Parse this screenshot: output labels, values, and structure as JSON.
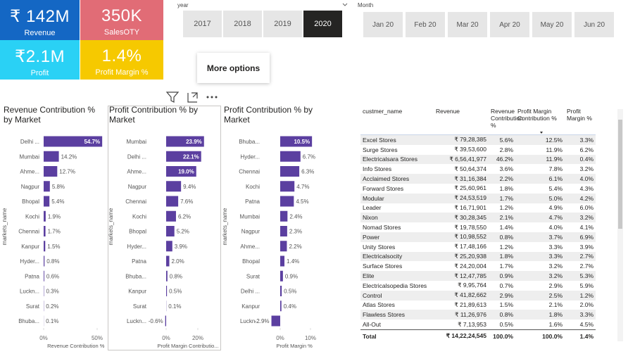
{
  "cards": [
    {
      "value": "₹ 142M",
      "label": "Revenue",
      "color": "#1467c4"
    },
    {
      "value": "350K",
      "label": "SalesOTY",
      "color": "#e16c76"
    },
    {
      "value": "₹2.1M",
      "label": "Profit",
      "color": "#2ad1f5"
    },
    {
      "value": "1.4%",
      "label": "Profit Margin  %",
      "color": "#f6c900"
    }
  ],
  "year_slicer": {
    "title": "year",
    "items": [
      "2017",
      "2018",
      "2019",
      "2020"
    ]
  },
  "month_slicer": {
    "title": "Month",
    "items": [
      "Jan 20",
      "Feb 20",
      "Mar 20",
      "Apr 20",
      "May 20",
      "Jun 20"
    ]
  },
  "tooltip": "More options",
  "chart_data": [
    {
      "type": "bar",
      "title": "Revenue Contribution % by Market",
      "y_label": "markets_name",
      "x_label": "Revenue Contribution %",
      "categories": [
        "Delhi ...",
        "Mumbai",
        "Ahme...",
        "Nagpur",
        "Bhopal",
        "Kochi",
        "Chennai",
        "Kanpur",
        "Hyder...",
        "Patna",
        "Luckn...",
        "Surat",
        "Bhuba..."
      ],
      "values": [
        54.7,
        14.2,
        12.7,
        5.8,
        5.4,
        1.9,
        1.7,
        1.5,
        0.8,
        0.6,
        0.3,
        0.2,
        0.1
      ],
      "value_labels": [
        "54.7%",
        "14.2%",
        "12.7%",
        "5.8%",
        "5.4%",
        "1.9%",
        "1.7%",
        "1.5%",
        "0.8%",
        "0.6%",
        "0.3%",
        "0.2%",
        "0.1%"
      ],
      "color": "#5b3fa0",
      "xlim": [
        0,
        55
      ],
      "xticks": [
        {
          "value": 0,
          "label": "0%"
        },
        {
          "value": 50,
          "label": "50%"
        }
      ]
    },
    {
      "type": "bar",
      "title": "Profit Contribution % by Market",
      "y_label": "markets_name",
      "x_label": "Profit Margin Contributio...",
      "categories": [
        "Mumbai",
        "Delhi ...",
        "Ahme...",
        "Nagpur",
        "Chennai",
        "Kochi",
        "Bhopal",
        "Hyder...",
        "Patna",
        "Bhuba...",
        "Kanpur",
        "Surat",
        "Luckn..."
      ],
      "values": [
        23.9,
        22.1,
        19.0,
        9.4,
        7.6,
        6.2,
        5.2,
        3.9,
        2.0,
        0.8,
        0.5,
        0.1,
        -0.6
      ],
      "value_labels": [
        "23.9%",
        "22.1%",
        "19.0%",
        "9.4%",
        "7.6%",
        "6.2%",
        "5.2%",
        "3.9%",
        "2.0%",
        "0.8%",
        "0.5%",
        "0.1%",
        "-0.6%"
      ],
      "color": "#5b3fa0",
      "xlim": [
        -1,
        25
      ],
      "xticks": [
        {
          "value": 0,
          "label": "0%"
        },
        {
          "value": 20,
          "label": "20%"
        }
      ]
    },
    {
      "type": "bar",
      "title": "Profit Contribution % by Market",
      "y_label": "markets_name",
      "x_label": "Profit Margin %",
      "categories": [
        "Bhuba...",
        "Hyder...",
        "Chennai",
        "Kochi",
        "Patna",
        "Mumbai",
        "Nagpur",
        "Ahme...",
        "Bhopal",
        "Surat",
        "Delhi ...",
        "Kanpur",
        "Luckn..."
      ],
      "values": [
        10.5,
        6.7,
        6.3,
        4.7,
        4.5,
        2.4,
        2.3,
        2.2,
        1.4,
        0.9,
        0.5,
        0.4,
        -2.9
      ],
      "value_labels": [
        "10.5%",
        "6.7%",
        "6.3%",
        "4.7%",
        "4.5%",
        "2.4%",
        "2.3%",
        "2.2%",
        "1.4%",
        "0.9%",
        "0.5%",
        "0.4%",
        "-2.9%"
      ],
      "color": "#5b3fa0",
      "xlim": [
        -3.5,
        11
      ],
      "xticks": [
        {
          "value": 0,
          "label": "0%"
        },
        {
          "value": 10,
          "label": "10%"
        }
      ]
    }
  ],
  "table": {
    "columns": [
      "custmer_name",
      "Revenue",
      "Revenue Contribution %",
      "Profit Margin Contribution %",
      "Profit Margin %"
    ],
    "rows": [
      [
        "Excel Stores",
        "₹ 79,28,385",
        "5.6%",
        "12.5%",
        "3.3%"
      ],
      [
        "Surge Stores",
        "₹ 39,53,600",
        "2.8%",
        "11.9%",
        "6.2%"
      ],
      [
        "Electricalsara Stores",
        "₹ 6,56,41,977",
        "46.2%",
        "11.9%",
        "0.4%"
      ],
      [
        "Info Stores",
        "₹ 50,64,374",
        "3.6%",
        "7.8%",
        "3.2%"
      ],
      [
        "Acclaimed Stores",
        "₹ 31,16,384",
        "2.2%",
        "6.1%",
        "4.0%"
      ],
      [
        "Forward Stores",
        "₹ 25,60,961",
        "1.8%",
        "5.4%",
        "4.3%"
      ],
      [
        "Modular",
        "₹ 24,53,519",
        "1.7%",
        "5.0%",
        "4.2%"
      ],
      [
        "Leader",
        "₹ 16,71,901",
        "1.2%",
        "4.9%",
        "6.0%"
      ],
      [
        "Nixon",
        "₹ 30,28,345",
        "2.1%",
        "4.7%",
        "3.2%"
      ],
      [
        "Nomad Stores",
        "₹ 19,78,550",
        "1.4%",
        "4.0%",
        "4.1%"
      ],
      [
        "Power",
        "₹ 10,98,552",
        "0.8%",
        "3.7%",
        "6.9%"
      ],
      [
        "Unity Stores",
        "₹ 17,48,166",
        "1.2%",
        "3.3%",
        "3.9%"
      ],
      [
        "Electricalsocity",
        "₹ 25,20,938",
        "1.8%",
        "3.3%",
        "2.7%"
      ],
      [
        "Surface Stores",
        "₹ 24,20,004",
        "1.7%",
        "3.2%",
        "2.7%"
      ],
      [
        "Elite",
        "₹ 12,47,785",
        "0.9%",
        "3.2%",
        "5.3%"
      ],
      [
        "Electricalsopedia Stores",
        "₹ 9,95,764",
        "0.7%",
        "2.9%",
        "5.9%"
      ],
      [
        "Control",
        "₹ 41,82,662",
        "2.9%",
        "2.5%",
        "1.2%"
      ],
      [
        "Atlas Stores",
        "₹ 21,89,613",
        "1.5%",
        "2.1%",
        "2.0%"
      ],
      [
        "Flawless Stores",
        "₹ 11,26,976",
        "0.8%",
        "1.8%",
        "3.3%"
      ],
      [
        "All-Out",
        "₹ 7,13,953",
        "0.5%",
        "1.6%",
        "4.5%"
      ]
    ],
    "total": [
      "Total",
      "₹ 14,22,24,545",
      "100.0%",
      "100.0%",
      "1.4%"
    ]
  }
}
